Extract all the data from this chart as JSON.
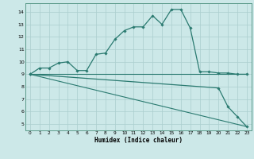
{
  "title": "",
  "xlabel": "Humidex (Indice chaleur)",
  "ylabel": "",
  "background_color": "#cce8e8",
  "grid_color": "#aacece",
  "line_color": "#2a7a70",
  "xlim": [
    -0.5,
    23.5
  ],
  "ylim": [
    4.5,
    14.7
  ],
  "xticks": [
    0,
    1,
    2,
    3,
    4,
    5,
    6,
    7,
    8,
    9,
    10,
    11,
    12,
    13,
    14,
    15,
    16,
    17,
    18,
    19,
    20,
    21,
    22,
    23
  ],
  "yticks": [
    5,
    6,
    7,
    8,
    9,
    10,
    11,
    12,
    13,
    14
  ],
  "series1_x": [
    0,
    1,
    2,
    3,
    4,
    5,
    6,
    7,
    8,
    9,
    10,
    11,
    12,
    13,
    14,
    15,
    16,
    17,
    18,
    19,
    20,
    21,
    22,
    23
  ],
  "series1_y": [
    9.0,
    9.5,
    9.5,
    9.9,
    10.0,
    9.3,
    9.3,
    10.6,
    10.7,
    11.8,
    12.5,
    12.8,
    12.8,
    13.7,
    13.0,
    14.2,
    14.2,
    12.7,
    9.2,
    9.2,
    9.1,
    9.1,
    9.0,
    9.0
  ],
  "series2_x": [
    0,
    23
  ],
  "series2_y": [
    9.0,
    9.0
  ],
  "series3_x": [
    0,
    23
  ],
  "series3_y": [
    9.0,
    4.8
  ],
  "series4_x": [
    0,
    20,
    21,
    22,
    23
  ],
  "series4_y": [
    9.0,
    7.9,
    6.4,
    5.6,
    4.8
  ],
  "spine_color": "#5a9a8a"
}
